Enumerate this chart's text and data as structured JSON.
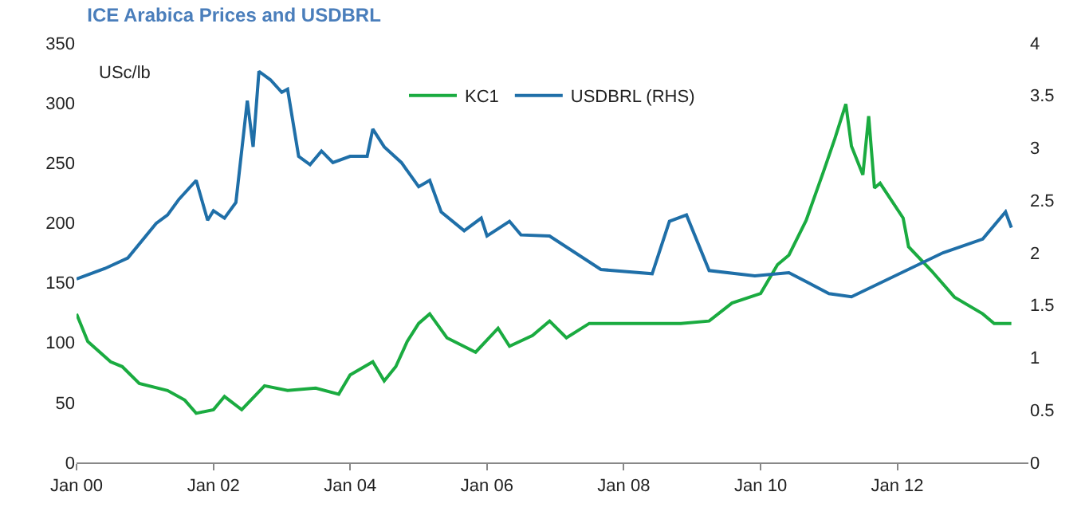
{
  "chart_data": {
    "type": "line",
    "title": "ICE Arabica Prices and USDBRL",
    "annotations": [
      "USc/lb"
    ],
    "xlim": [
      "2000-01",
      "2013-12"
    ],
    "xticks": [
      {
        "value": "2000-01",
        "label": "Jan 00"
      },
      {
        "value": "2002-01",
        "label": "Jan 02"
      },
      {
        "value": "2004-01",
        "label": "Jan 04"
      },
      {
        "value": "2006-01",
        "label": "Jan 06"
      },
      {
        "value": "2008-01",
        "label": "Jan 08"
      },
      {
        "value": "2010-01",
        "label": "Jan 10"
      },
      {
        "value": "2012-01",
        "label": "Jan 12"
      }
    ],
    "ylim": [
      0,
      350
    ],
    "yticks": [
      0,
      50,
      100,
      150,
      200,
      250,
      300,
      350
    ],
    "y2lim": [
      0,
      4
    ],
    "y2ticks": [
      0,
      0.5,
      1,
      1.5,
      2,
      2.5,
      3,
      3.5,
      4
    ],
    "legend": "top",
    "marker": "none",
    "line_style": "solid",
    "series": [
      {
        "name": "KC1",
        "color": "#1aab40",
        "x": [
          "2000-01",
          "2000-03",
          "2000-07",
          "2000-09",
          "2000-12",
          "2001-05",
          "2001-08",
          "2001-10",
          "2002-01",
          "2002-03",
          "2002-06",
          "2002-10",
          "2003-02",
          "2003-07",
          "2003-11",
          "2004-01",
          "2004-05",
          "2004-07",
          "2004-09",
          "2004-11",
          "2005-01",
          "2005-03",
          "2005-06",
          "2005-11",
          "2006-03",
          "2006-05",
          "2006-09",
          "2006-12",
          "2007-03",
          "2007-07",
          "2008-11",
          "2009-04",
          "2009-08",
          "2010-01",
          "2010-04",
          "2010-06",
          "2010-09",
          "2010-12",
          "2011-02",
          "2011-04",
          "2011-05",
          "2011-07",
          "2011-08",
          "2011-09",
          "2011-10",
          "2012-02",
          "2012-03",
          "2012-07",
          "2012-11",
          "2013-04",
          "2013-06",
          "2013-09"
        ],
        "values": [
          124,
          101,
          84,
          80,
          66,
          60,
          52,
          41,
          44,
          55,
          44,
          64,
          60,
          62,
          57,
          73,
          84,
          68,
          80,
          101,
          116,
          124,
          104,
          92,
          112,
          97,
          106,
          118,
          104,
          116,
          116,
          118,
          133,
          141,
          165,
          173,
          202,
          242,
          270,
          299,
          264,
          240,
          289,
          229,
          233,
          204,
          180,
          160,
          138,
          124,
          116,
          116
        ]
      },
      {
        "name": "USDBRL (RHS)",
        "color": "#1f6fa8",
        "axis": "y2",
        "x": [
          "2000-01",
          "2000-06",
          "2000-10",
          "2001-03",
          "2001-05",
          "2001-07",
          "2001-10",
          "2001-12",
          "2002-01",
          "2002-03",
          "2002-05",
          "2002-07",
          "2002-08",
          "2002-09",
          "2002-11",
          "2003-01",
          "2003-02",
          "2003-04",
          "2003-06",
          "2003-08",
          "2003-10",
          "2004-01",
          "2004-04",
          "2004-05",
          "2004-07",
          "2004-10",
          "2005-01",
          "2005-03",
          "2005-05",
          "2005-09",
          "2005-12",
          "2006-01",
          "2006-05",
          "2006-07",
          "2006-12",
          "2007-09",
          "2008-06",
          "2008-09",
          "2008-12",
          "2009-04",
          "2009-12",
          "2010-06",
          "2011-01",
          "2011-05",
          "2012-09",
          "2013-04",
          "2013-08",
          "2013-09"
        ],
        "values": [
          1.75,
          1.85,
          1.95,
          2.28,
          2.36,
          2.51,
          2.69,
          2.31,
          2.4,
          2.33,
          2.48,
          3.45,
          3.01,
          3.73,
          3.65,
          3.53,
          3.56,
          2.92,
          2.84,
          2.97,
          2.86,
          2.92,
          2.92,
          3.18,
          3.01,
          2.86,
          2.63,
          2.69,
          2.39,
          2.21,
          2.33,
          2.16,
          2.3,
          2.17,
          2.16,
          1.84,
          1.8,
          2.3,
          2.36,
          1.83,
          1.78,
          1.81,
          1.61,
          1.58,
          2.0,
          2.13,
          2.39,
          2.24
        ]
      }
    ]
  }
}
